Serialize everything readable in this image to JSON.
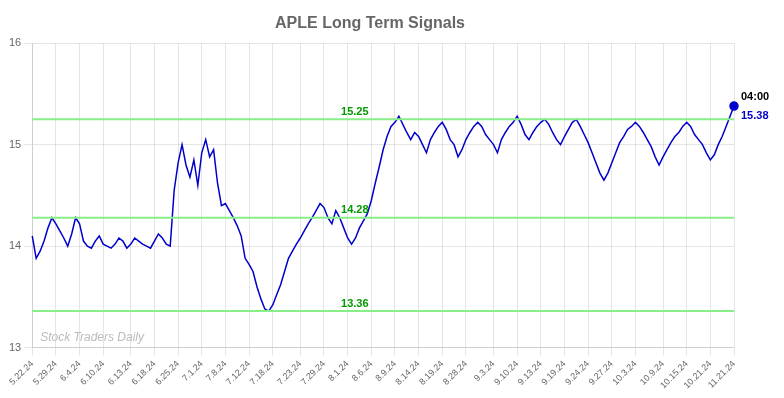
{
  "chart_data": {
    "type": "line",
    "title": "APLE Long Term Signals",
    "color": "#0000cc",
    "grid": true,
    "ylim": [
      13,
      16
    ],
    "yticks": [
      13,
      14,
      15,
      16
    ],
    "categories": [
      "5.22.24",
      null,
      null,
      null,
      null,
      null,
      "5.29.24",
      null,
      null,
      null,
      null,
      null,
      "6.4.24",
      null,
      null,
      null,
      null,
      null,
      "6.10.24",
      null,
      null,
      null,
      null,
      null,
      null,
      "6.13.24",
      null,
      null,
      null,
      null,
      null,
      "6.18.24",
      null,
      null,
      null,
      null,
      null,
      "6.25.24",
      null,
      null,
      null,
      null,
      null,
      "7.1.24",
      null,
      null,
      null,
      null,
      null,
      "7.8.24",
      null,
      null,
      null,
      null,
      null,
      "7.12.24",
      null,
      null,
      null,
      null,
      null,
      "7.18.24",
      null,
      null,
      null,
      null,
      null,
      null,
      "7.23.24",
      null,
      null,
      null,
      null,
      null,
      "7.29.24",
      null,
      null,
      null,
      null,
      null,
      "8.1.24",
      null,
      null,
      null,
      null,
      null,
      "8.6.24",
      null,
      null,
      null,
      null,
      null,
      "8.9.24",
      null,
      null,
      null,
      null,
      null,
      "8.14.24",
      null,
      null,
      null,
      null,
      null,
      "8.19.24",
      null,
      null,
      null,
      null,
      null,
      "8.28.24",
      null,
      null,
      null,
      null,
      null,
      null,
      "9.3.24",
      null,
      null,
      null,
      null,
      null,
      "9.10.24",
      null,
      null,
      null,
      null,
      null,
      "9.13.24",
      null,
      null,
      null,
      null,
      null,
      "9.19.24",
      null,
      null,
      null,
      null,
      null,
      "9.24.24",
      null,
      null,
      null,
      null,
      null,
      "9.27.24",
      null,
      null,
      null,
      null,
      null,
      "10.3.24",
      null,
      null,
      null,
      null,
      null,
      null,
      "10.9.24",
      null,
      null,
      null,
      null,
      null,
      "10.15.24",
      null,
      null,
      null,
      null,
      null,
      "10.21.24",
      null,
      null,
      null,
      null,
      null,
      "11.21.24"
    ],
    "values": [
      14.1,
      13.88,
      13.95,
      14.05,
      14.18,
      14.28,
      14.22,
      14.15,
      14.08,
      14.0,
      14.12,
      14.28,
      14.22,
      14.05,
      14.0,
      13.98,
      14.05,
      14.1,
      14.02,
      14.0,
      13.98,
      14.02,
      14.08,
      14.05,
      13.98,
      14.02,
      14.08,
      14.05,
      14.02,
      14.0,
      13.98,
      14.05,
      14.12,
      14.08,
      14.02,
      14.0,
      14.55,
      14.82,
      15.0,
      14.8,
      14.68,
      14.85,
      14.6,
      14.92,
      15.05,
      14.88,
      14.95,
      14.62,
      14.4,
      14.42,
      14.35,
      14.28,
      14.2,
      14.1,
      13.88,
      13.82,
      13.75,
      13.6,
      13.48,
      13.38,
      13.36,
      13.42,
      13.52,
      13.62,
      13.75,
      13.88,
      13.95,
      14.02,
      14.08,
      14.15,
      14.22,
      14.28,
      14.35,
      14.42,
      14.38,
      14.28,
      14.22,
      14.35,
      14.28,
      14.18,
      14.08,
      14.02,
      14.08,
      14.18,
      14.25,
      14.32,
      14.45,
      14.62,
      14.78,
      14.95,
      15.08,
      15.18,
      15.22,
      15.28,
      15.2,
      15.12,
      15.05,
      15.12,
      15.08,
      15.0,
      14.92,
      15.05,
      15.12,
      15.18,
      15.22,
      15.15,
      15.05,
      15.0,
      14.88,
      14.95,
      15.05,
      15.12,
      15.18,
      15.22,
      15.18,
      15.1,
      15.05,
      15.0,
      14.92,
      15.05,
      15.12,
      15.18,
      15.22,
      15.28,
      15.2,
      15.1,
      15.05,
      15.12,
      15.18,
      15.22,
      15.25,
      15.2,
      15.12,
      15.05,
      15.0,
      15.08,
      15.15,
      15.22,
      15.25,
      15.18,
      15.1,
      15.02,
      14.92,
      14.82,
      14.72,
      14.65,
      14.72,
      14.82,
      14.92,
      15.02,
      15.08,
      15.15,
      15.18,
      15.22,
      15.18,
      15.12,
      15.05,
      14.98,
      14.88,
      14.8,
      14.88,
      14.95,
      15.02,
      15.08,
      15.12,
      15.18,
      15.22,
      15.18,
      15.1,
      15.05,
      15.0,
      14.92,
      14.85,
      14.9,
      15.0,
      15.08,
      15.18,
      15.28,
      15.38
    ],
    "annotations": [
      {
        "kind": "hline",
        "y": 15.25,
        "text": "15.25",
        "color": "#009900",
        "line_color": "#88ee88"
      },
      {
        "kind": "hline",
        "y": 14.28,
        "text": "14.28",
        "color": "#009900",
        "line_color": "#88ee88"
      },
      {
        "kind": "hline",
        "y": 13.36,
        "text": "13.36",
        "color": "#009900",
        "line_color": "#88ee88"
      },
      {
        "kind": "last_label",
        "text": "04:00",
        "color": "#000000"
      },
      {
        "kind": "last_value",
        "y": 15.38,
        "text": "15.38",
        "color": "#0000cc"
      },
      {
        "kind": "watermark",
        "text": "Stock Traders Daily",
        "color": "#bbbbbb"
      }
    ]
  }
}
